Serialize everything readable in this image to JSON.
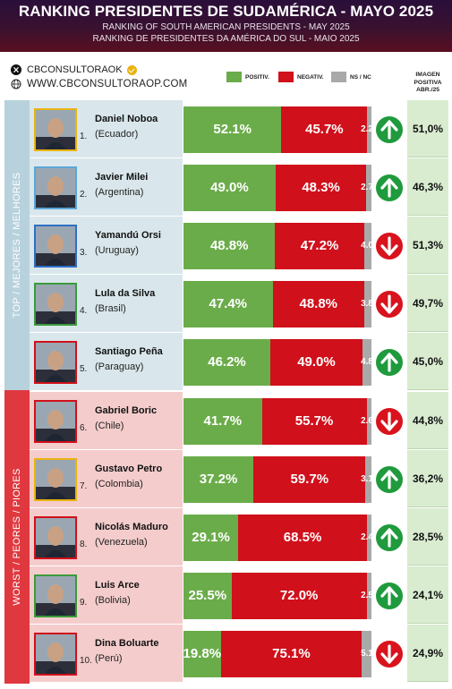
{
  "header": {
    "title": "RANKING PRESIDENTES DE SUDAMÉRICA - MAYO 2025",
    "subtitle_en": "RANKING OF SOUTH AMERICAN PRESIDENTS -  MAY 2025",
    "subtitle_pt": "RANKING DE PRESIDENTES DA AMÉRICA DO SUL - MAIO 2025"
  },
  "social": {
    "x_handle": "CBCONSULTORAOK",
    "website": "WWW.CBCONSULTORAOP.COM"
  },
  "legend": {
    "positive": "POSITIV.",
    "negative": "NEGATIV.",
    "ns": "NS / NC"
  },
  "image_column_header": [
    "IMAGEN",
    "POSITIVA",
    "ABR./25"
  ],
  "groups": {
    "top": "TOP / MEJORES / MELHORES",
    "worst": "WORST / PEORES / PIORES"
  },
  "colors": {
    "positive": "#6bac4a",
    "negative": "#d0101b",
    "ns": "#a9a9a9",
    "arrow_up": "#1f9a3c",
    "arrow_down": "#d8131e"
  },
  "chart_data": {
    "type": "bar",
    "stacked": true,
    "orientation": "horizontal",
    "title": "RANKING PRESIDENTES DE SUDAMÉRICA - MAYO 2025",
    "categories": [
      "Daniel Noboa",
      "Javier Milei",
      "Yamandú Orsi",
      "Lula da Silva",
      "Santiago Peña",
      "Gabriel Boric",
      "Gustavo Petro",
      "Nicolás Maduro",
      "Luis Arce",
      "Dina Boluarte"
    ],
    "series": [
      {
        "name": "POSITIV.",
        "values": [
          52.1,
          49.0,
          48.8,
          47.4,
          46.2,
          41.7,
          37.2,
          29.1,
          25.5,
          19.8
        ]
      },
      {
        "name": "NEGATIV.",
        "values": [
          45.7,
          48.3,
          47.2,
          48.8,
          49.0,
          55.7,
          59.7,
          68.5,
          72.0,
          75.1
        ]
      },
      {
        "name": "NS / NC",
        "values": [
          2.2,
          2.7,
          4.0,
          3.8,
          4.8,
          2.6,
          3.1,
          2.4,
          2.5,
          5.1
        ]
      }
    ],
    "xlim": [
      0,
      100
    ]
  },
  "presidents": [
    {
      "rank": "1.",
      "name": "Daniel Noboa",
      "country": "(Ecuador)",
      "pos": "52.1%",
      "neg": "45.7%",
      "ns": "2.2",
      "trend": "up",
      "prev": "51,0%",
      "group": "top",
      "border": "#e9b310"
    },
    {
      "rank": "2.",
      "name": "Javier Milei",
      "country": "(Argentina)",
      "pos": "49.0%",
      "neg": "48.3%",
      "ns": "2.7",
      "trend": "up",
      "prev": "46,3%",
      "group": "top",
      "border": "#5aa6d6"
    },
    {
      "rank": "3.",
      "name": "Yamandú Orsi",
      "country": "(Uruguay)",
      "pos": "48.8%",
      "neg": "47.2%",
      "ns": "4.0",
      "trend": "down",
      "prev": "51,3%",
      "group": "top",
      "border": "#2f6fc4"
    },
    {
      "rank": "4.",
      "name": "Lula da Silva",
      "country": "(Brasil)",
      "pos": "47.4%",
      "neg": "48.8%",
      "ns": "3.8",
      "trend": "down",
      "prev": "49,7%",
      "group": "top",
      "border": "#3a9a3a"
    },
    {
      "rank": "5.",
      "name": "Santiago Peña",
      "country": "(Paraguay)",
      "pos": "46.2%",
      "neg": "49.0%",
      "ns": "4.8",
      "trend": "up",
      "prev": "45,0%",
      "group": "top",
      "border": "#d0101b"
    },
    {
      "rank": "6.",
      "name": "Gabriel Boric",
      "country": "(Chile)",
      "pos": "41.7%",
      "neg": "55.7%",
      "ns": "2.6",
      "trend": "down",
      "prev": "44,8%",
      "group": "worst",
      "border": "#d0101b"
    },
    {
      "rank": "7.",
      "name": "Gustavo Petro",
      "country": "(Colombia)",
      "pos": "37.2%",
      "neg": "59.7%",
      "ns": "3.1",
      "trend": "up",
      "prev": "36,2%",
      "group": "worst",
      "border": "#e9b310"
    },
    {
      "rank": "8.",
      "name": "Nicolás Maduro",
      "country": "(Venezuela)",
      "pos": "29.1%",
      "neg": "68.5%",
      "ns": "2.4",
      "trend": "up",
      "prev": "28,5%",
      "group": "worst",
      "border": "#d0101b"
    },
    {
      "rank": "9.",
      "name": "Luis Arce",
      "country": "(Bolivia)",
      "pos": "25.5%",
      "neg": "72.0%",
      "ns": "2.5",
      "trend": "up",
      "prev": "24,1%",
      "group": "worst",
      "border": "#3a9a3a"
    },
    {
      "rank": "10.",
      "name": "Dina Boluarte",
      "country": "(Perú)",
      "pos": "19.8%",
      "neg": "75.1%",
      "ns": "5.1",
      "trend": "down",
      "prev": "24,9%",
      "group": "worst",
      "border": "#d0101b"
    }
  ]
}
